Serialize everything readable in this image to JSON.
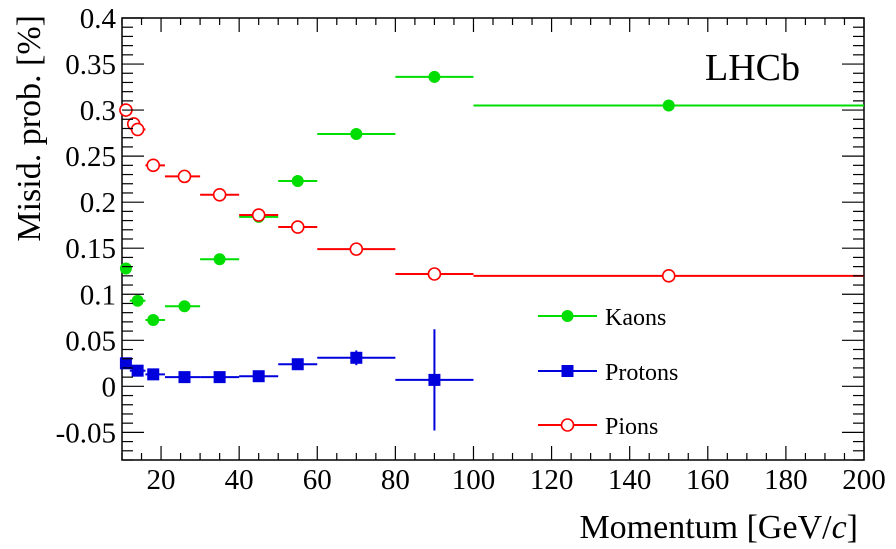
{
  "chart_data": {
    "type": "scatter",
    "title": "",
    "watermark": "LHCb",
    "xlabel": "Momentum [GeV/c]",
    "xlabel_parts": {
      "prefix": "Momentum [GeV/",
      "italic": "c",
      "suffix": "]"
    },
    "ylabel": "Misid. prob. [%]",
    "xlim": [
      10,
      200
    ],
    "ylim": [
      -0.08,
      0.4
    ],
    "x_ticks": [
      20,
      40,
      60,
      80,
      100,
      120,
      140,
      160,
      180,
      200
    ],
    "x_tick_labels": [
      "20",
      "40",
      "60",
      "80",
      "100",
      "120",
      "140",
      "160",
      "180",
      "200"
    ],
    "y_ticks": [
      -0.05,
      0,
      0.05,
      0.1,
      0.15,
      0.2,
      0.25,
      0.3,
      0.35,
      0.4
    ],
    "y_tick_labels": [
      "-0.05",
      "0",
      "0.05",
      "0.1",
      "0.15",
      "0.2",
      "0.25",
      "0.3",
      "0.35",
      "0.4"
    ],
    "grid": false,
    "legend_position": "bottom-right",
    "series": [
      {
        "name": "Kaons",
        "color": "#00dd00",
        "marker": "filled-circle",
        "points": [
          {
            "x": 11,
            "y": 0.128,
            "xlo": 10,
            "xhi": 12,
            "yerr": 0.003
          },
          {
            "x": 14,
            "y": 0.093,
            "xlo": 12,
            "xhi": 16,
            "yerr": 0.003
          },
          {
            "x": 18,
            "y": 0.072,
            "xlo": 16,
            "xhi": 21,
            "yerr": 0.003
          },
          {
            "x": 26,
            "y": 0.087,
            "xlo": 21,
            "xhi": 30,
            "yerr": 0.003
          },
          {
            "x": 35,
            "y": 0.138,
            "xlo": 30,
            "xhi": 40,
            "yerr": 0.003
          },
          {
            "x": 45,
            "y": 0.184,
            "xlo": 40,
            "xhi": 50,
            "yerr": 0.003
          },
          {
            "x": 55,
            "y": 0.223,
            "xlo": 50,
            "xhi": 60,
            "yerr": 0.003
          },
          {
            "x": 70,
            "y": 0.274,
            "xlo": 60,
            "xhi": 80,
            "yerr": 0.003
          },
          {
            "x": 90,
            "y": 0.336,
            "xlo": 80,
            "xhi": 100,
            "yerr": 0.003
          },
          {
            "x": 150,
            "y": 0.305,
            "xlo": 100,
            "xhi": 200,
            "yerr": 0.003
          }
        ]
      },
      {
        "name": "Protons",
        "color": "#0000dd",
        "marker": "filled-square",
        "points": [
          {
            "x": 11,
            "y": 0.025,
            "xlo": 10,
            "xhi": 12,
            "yerr": 0.003
          },
          {
            "x": 14,
            "y": 0.017,
            "xlo": 12,
            "xhi": 16,
            "yerr": 0.003
          },
          {
            "x": 18,
            "y": 0.013,
            "xlo": 16,
            "xhi": 21,
            "yerr": 0.003
          },
          {
            "x": 26,
            "y": 0.01,
            "xlo": 21,
            "xhi": 30,
            "yerr": 0.003
          },
          {
            "x": 35,
            "y": 0.01,
            "xlo": 30,
            "xhi": 40,
            "yerr": 0.003
          },
          {
            "x": 45,
            "y": 0.011,
            "xlo": 40,
            "xhi": 50,
            "yerr": 0.003
          },
          {
            "x": 55,
            "y": 0.024,
            "xlo": 50,
            "xhi": 60,
            "yerr": 0.004
          },
          {
            "x": 70,
            "y": 0.031,
            "xlo": 60,
            "xhi": 80,
            "yerr": 0.008
          },
          {
            "x": 90,
            "y": 0.007,
            "xlo": 80,
            "xhi": 100,
            "yerr": 0.055
          }
        ]
      },
      {
        "name": "Pions",
        "color": "#ff0000",
        "marker": "open-circle",
        "points": [
          {
            "x": 11,
            "y": 0.3,
            "xlo": 10,
            "xhi": 12,
            "yerr": 0.003
          },
          {
            "x": 13,
            "y": 0.285,
            "xlo": 12,
            "xhi": 14,
            "yerr": 0.003
          },
          {
            "x": 14,
            "y": 0.279,
            "xlo": 14,
            "xhi": 16,
            "yerr": 0.003
          },
          {
            "x": 18,
            "y": 0.24,
            "xlo": 16,
            "xhi": 21,
            "yerr": 0.003
          },
          {
            "x": 26,
            "y": 0.228,
            "xlo": 21,
            "xhi": 30,
            "yerr": 0.003
          },
          {
            "x": 35,
            "y": 0.208,
            "xlo": 30,
            "xhi": 40,
            "yerr": 0.003
          },
          {
            "x": 45,
            "y": 0.186,
            "xlo": 40,
            "xhi": 50,
            "yerr": 0.003
          },
          {
            "x": 55,
            "y": 0.173,
            "xlo": 50,
            "xhi": 60,
            "yerr": 0.003
          },
          {
            "x": 70,
            "y": 0.149,
            "xlo": 60,
            "xhi": 80,
            "yerr": 0.003
          },
          {
            "x": 90,
            "y": 0.122,
            "xlo": 80,
            "xhi": 100,
            "yerr": 0.003
          },
          {
            "x": 150,
            "y": 0.12,
            "xlo": 100,
            "xhi": 200,
            "yerr": 0.003
          }
        ]
      }
    ]
  }
}
